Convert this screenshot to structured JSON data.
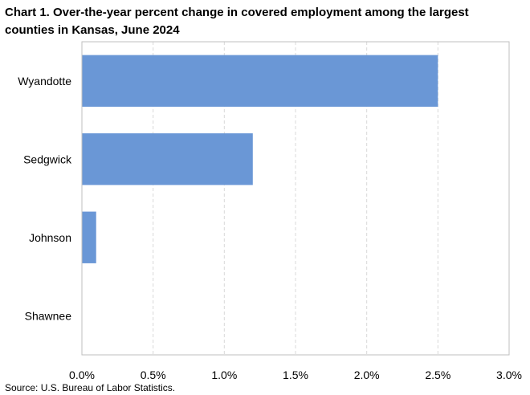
{
  "title": "Chart 1. Over-the-year percent change in covered employment among the largest counties in Kansas, June 2024",
  "source": "Source: U.S. Bureau of Labor Statistics.",
  "chart_data": {
    "type": "bar",
    "orientation": "horizontal",
    "title": "Chart 1. Over-the-year percent change in covered employment among the largest counties in Kansas, June 2024",
    "categories": [
      "Wyandotte",
      "Sedgwick",
      "Johnson",
      "Shawnee"
    ],
    "values": [
      2.5,
      1.2,
      0.1,
      0.0
    ],
    "unit": "%",
    "xlim": [
      0,
      3.0
    ],
    "x_ticks": [
      0,
      0.5,
      1.0,
      1.5,
      2.0,
      2.5,
      3.0
    ],
    "x_tick_labels": [
      "0.0%",
      "0.5%",
      "1.0%",
      "1.5%",
      "2.0%",
      "2.5%",
      "3.0%"
    ],
    "xlabel": "",
    "ylabel": "",
    "grid": "vertical dashed",
    "legend": "none",
    "bar_color": "#6a97d6"
  }
}
